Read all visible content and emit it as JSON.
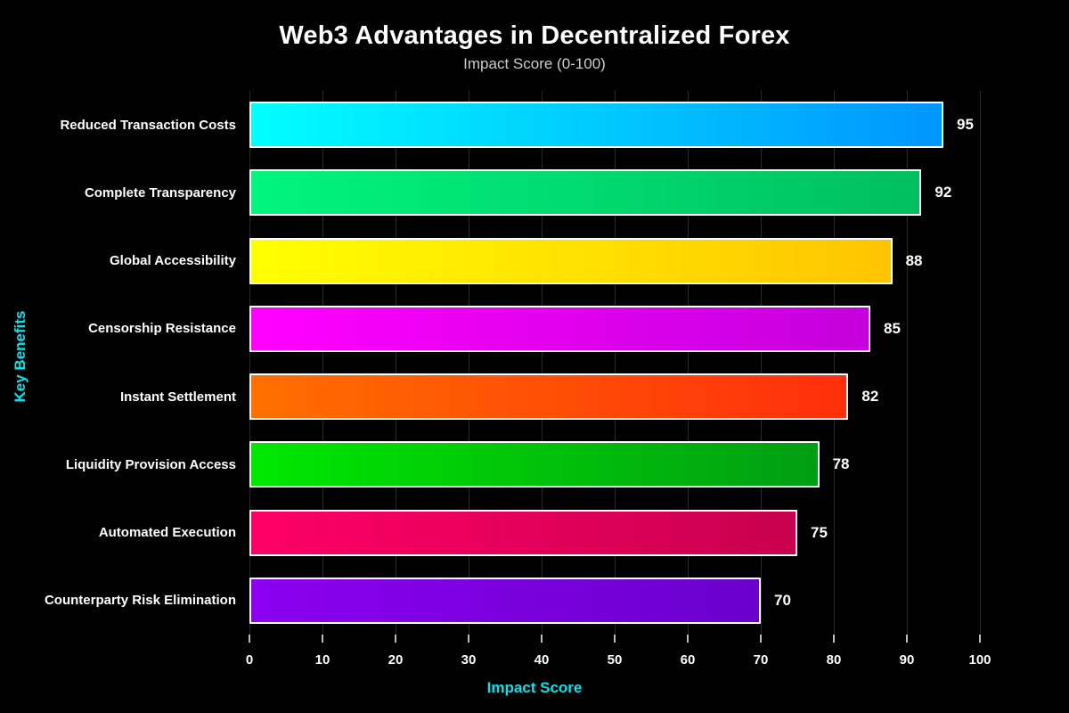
{
  "title": "Web3 Advantages in Decentralized Forex",
  "subtitle": "Impact Score (0-100)",
  "x_axis": {
    "label": "Impact Score",
    "ticks": [
      0,
      10,
      20,
      30,
      40,
      50,
      60,
      70,
      80,
      90,
      100
    ]
  },
  "y_axis": {
    "label": "Key Benefits"
  },
  "colors": {
    "background": "#000000",
    "title_text": "#ffffff",
    "subtitle_text": "#cccccc",
    "category_text": "#ffffff",
    "value_text": "#ffffff",
    "tick_text": "#ffffff",
    "axis_accent": "#00e5ee",
    "gridline": "#2a2a2a",
    "tick_mark": "#bbbbbb",
    "bar_border": "#ffffff"
  },
  "chart_data": {
    "type": "bar",
    "orientation": "horizontal",
    "title": "Web3 Advantages in Decentralized Forex",
    "subtitle": "Impact Score (0-100)",
    "xlabel": "Impact Score",
    "ylabel": "Key Benefits",
    "xlim": [
      0,
      100
    ],
    "grid": true,
    "legend": false,
    "categories": [
      "Reduced Transaction Costs",
      "Complete Transparency",
      "Global Accessibility",
      "Censorship Resistance",
      "Instant Settlement",
      "Liquidity Provision Access",
      "Automated Execution",
      "Counterparty Risk Elimination"
    ],
    "values": [
      95,
      92,
      88,
      85,
      82,
      78,
      75,
      70
    ],
    "value_labels": [
      "95",
      "92",
      "88",
      "85",
      "82",
      "78",
      "75",
      "70"
    ],
    "bar_gradients": [
      {
        "from": "#00ffff",
        "to": "#0095ff"
      },
      {
        "from": "#00f57e",
        "to": "#00bf5f"
      },
      {
        "from": "#ffff00",
        "to": "#ffc400"
      },
      {
        "from": "#ff00ff",
        "to": "#c400dc"
      },
      {
        "from": "#ff6f00",
        "to": "#ff2e0c"
      },
      {
        "from": "#00e800",
        "to": "#009e12"
      },
      {
        "from": "#ff0066",
        "to": "#c8004e"
      },
      {
        "from": "#8b00f0",
        "to": "#6a00cc"
      }
    ]
  }
}
